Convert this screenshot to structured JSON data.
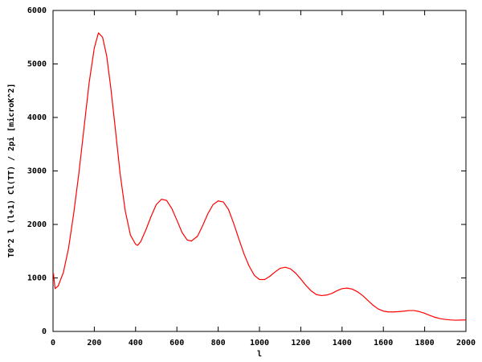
{
  "chart_data": {
    "type": "line",
    "xlabel": "l",
    "ylabel": "T0^2 l (l+1) Cl(TT) / 2pi [microK^2]",
    "x": [
      2,
      10,
      25,
      50,
      75,
      100,
      125,
      150,
      175,
      200,
      220,
      240,
      260,
      280,
      300,
      325,
      350,
      375,
      400,
      410,
      425,
      450,
      475,
      500,
      525,
      550,
      575,
      600,
      625,
      650,
      670,
      700,
      725,
      750,
      775,
      800,
      825,
      850,
      875,
      900,
      925,
      950,
      975,
      1000,
      1025,
      1050,
      1075,
      1100,
      1125,
      1150,
      1175,
      1200,
      1225,
      1250,
      1275,
      1300,
      1325,
      1350,
      1375,
      1400,
      1425,
      1450,
      1475,
      1500,
      1525,
      1550,
      1575,
      1600,
      1625,
      1650,
      1675,
      1700,
      1725,
      1750,
      1775,
      1800,
      1825,
      1850,
      1875,
      1900,
      1925,
      1950,
      1975,
      2000
    ],
    "series": [
      {
        "color": "#ff0000",
        "values": [
          1090,
          800,
          850,
          1100,
          1550,
          2200,
          2950,
          3800,
          4650,
          5300,
          5580,
          5500,
          5150,
          4550,
          3850,
          2950,
          2250,
          1800,
          1630,
          1610,
          1680,
          1900,
          2150,
          2370,
          2470,
          2450,
          2300,
          2080,
          1850,
          1710,
          1690,
          1780,
          1980,
          2200,
          2370,
          2440,
          2420,
          2280,
          2020,
          1730,
          1450,
          1220,
          1050,
          970,
          970,
          1030,
          1110,
          1180,
          1200,
          1170,
          1090,
          980,
          860,
          760,
          690,
          670,
          680,
          710,
          760,
          800,
          810,
          790,
          740,
          670,
          580,
          490,
          420,
          380,
          365,
          365,
          370,
          380,
          390,
          390,
          370,
          340,
          300,
          265,
          240,
          225,
          215,
          210,
          212,
          215
        ]
      }
    ],
    "xlim": [
      0,
      2000
    ],
    "ylim": [
      0,
      6000
    ],
    "xticks": [
      0,
      200,
      400,
      600,
      800,
      1000,
      1200,
      1400,
      1600,
      1800,
      2000
    ],
    "yticks": [
      0,
      1000,
      2000,
      3000,
      4000,
      5000,
      6000
    ]
  }
}
